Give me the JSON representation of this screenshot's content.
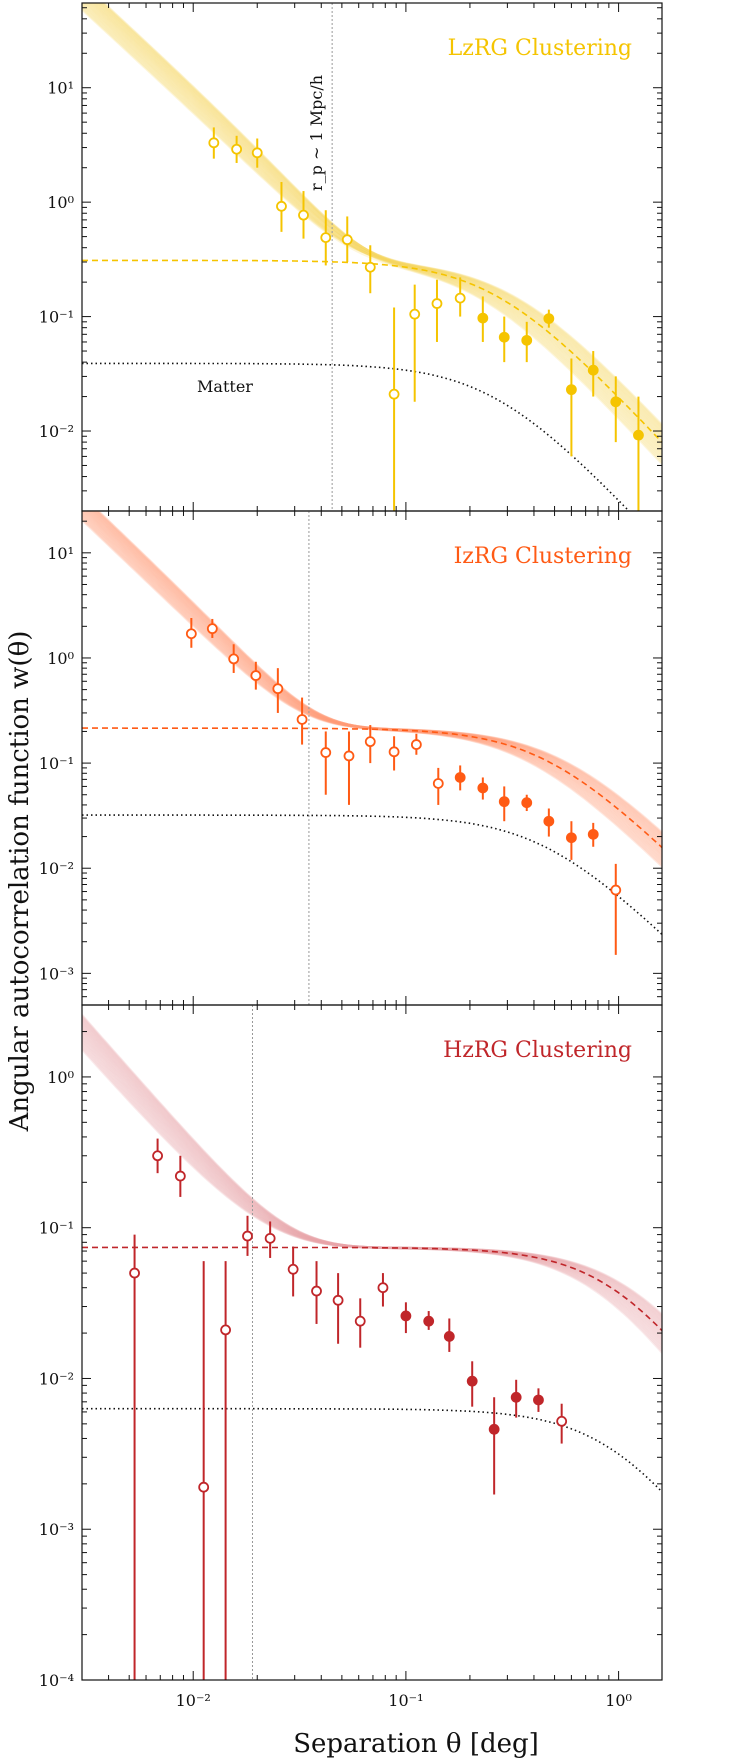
{
  "figure": {
    "ylabel": "Angular autocorrelation function w(θ)",
    "xlabel": "Separation θ [deg]",
    "xlim": [
      0.003,
      1.6
    ],
    "xticks": [
      {
        "v": 0.01,
        "label": "10⁻²"
      },
      {
        "v": 0.1,
        "label": "10⁻¹"
      },
      {
        "v": 1,
        "label": "10⁰"
      }
    ],
    "matter_label": "Matter",
    "scale_label": "r_p ~ 1 Mpc/h"
  },
  "chart_data": [
    {
      "type": "scatter",
      "title": "LzRG Clustering",
      "color": "#f5c400",
      "band_color": "#f7d760",
      "ylim": [
        0.002,
        55
      ],
      "yticks": [
        {
          "v": 0.01,
          "label": "10⁻²"
        },
        {
          "v": 0.1,
          "label": "10⁻¹"
        },
        {
          "v": 1,
          "label": "10⁰"
        },
        {
          "v": 10,
          "label": "10¹"
        }
      ],
      "theta_1mpc": 0.045,
      "model": {
        "amp": 0.31,
        "k": 0.26,
        "hard_amp": 0.54,
        "slope": 1.7,
        "cut": 0.05
      },
      "matter_amp": 0.039,
      "points": [
        {
          "x": 0.0125,
          "y": 3.3,
          "lo": 2.4,
          "hi": 4.5,
          "filled": false
        },
        {
          "x": 0.016,
          "y": 2.9,
          "lo": 2.2,
          "hi": 3.8,
          "filled": false
        },
        {
          "x": 0.02,
          "y": 2.7,
          "lo": 2.0,
          "hi": 3.6,
          "filled": false
        },
        {
          "x": 0.026,
          "y": 0.92,
          "lo": 0.55,
          "hi": 1.5,
          "filled": false
        },
        {
          "x": 0.033,
          "y": 0.77,
          "lo": 0.48,
          "hi": 1.25,
          "filled": false
        },
        {
          "x": 0.042,
          "y": 0.49,
          "lo": 0.28,
          "hi": 0.85,
          "filled": false
        },
        {
          "x": 0.053,
          "y": 0.47,
          "lo": 0.3,
          "hi": 0.75,
          "filled": false
        },
        {
          "x": 0.068,
          "y": 0.27,
          "lo": 0.16,
          "hi": 0.42,
          "filled": false
        },
        {
          "x": 0.088,
          "y": 0.021,
          "lo": 0.001,
          "hi": 0.12,
          "filled": false
        },
        {
          "x": 0.11,
          "y": 0.105,
          "lo": 0.018,
          "hi": 0.19,
          "filled": false
        },
        {
          "x": 0.14,
          "y": 0.13,
          "lo": 0.06,
          "hi": 0.21,
          "filled": false
        },
        {
          "x": 0.18,
          "y": 0.145,
          "lo": 0.1,
          "hi": 0.22,
          "filled": false
        },
        {
          "x": 0.23,
          "y": 0.097,
          "lo": 0.06,
          "hi": 0.15,
          "filled": true
        },
        {
          "x": 0.29,
          "y": 0.066,
          "lo": 0.04,
          "hi": 0.1,
          "filled": true
        },
        {
          "x": 0.37,
          "y": 0.062,
          "lo": 0.04,
          "hi": 0.09,
          "filled": true
        },
        {
          "x": 0.47,
          "y": 0.096,
          "lo": 0.08,
          "hi": 0.115,
          "filled": true
        },
        {
          "x": 0.6,
          "y": 0.023,
          "lo": 0.006,
          "hi": 0.043,
          "filled": true
        },
        {
          "x": 0.76,
          "y": 0.034,
          "lo": 0.02,
          "hi": 0.05,
          "filled": true
        },
        {
          "x": 0.97,
          "y": 0.018,
          "lo": 0.008,
          "hi": 0.03,
          "filled": true
        },
        {
          "x": 1.24,
          "y": 0.0092,
          "lo": 0.002,
          "hi": 0.02,
          "filled": true
        }
      ]
    },
    {
      "type": "scatter",
      "title": "IzRG Clustering",
      "color": "#ff5a14",
      "band_color": "#ff9a76",
      "ylim": [
        0.0005,
        25
      ],
      "yticks": [
        {
          "v": 0.001,
          "label": "10⁻³"
        },
        {
          "v": 0.01,
          "label": "10⁻²"
        },
        {
          "v": 0.1,
          "label": "10⁻¹"
        },
        {
          "v": 1,
          "label": "10⁰"
        },
        {
          "v": 10,
          "label": "10¹"
        }
      ],
      "theta_1mpc": 0.035,
      "model": {
        "amp": 0.215,
        "k": 0.45,
        "hard_amp": 0.26,
        "slope": 1.9,
        "cut": 0.035
      },
      "matter_amp": 0.032,
      "points": [
        {
          "x": 0.0098,
          "y": 1.7,
          "lo": 1.25,
          "hi": 2.4,
          "filled": false
        },
        {
          "x": 0.0123,
          "y": 1.9,
          "lo": 1.55,
          "hi": 2.35,
          "filled": false
        },
        {
          "x": 0.0155,
          "y": 0.98,
          "lo": 0.72,
          "hi": 1.35,
          "filled": false
        },
        {
          "x": 0.0197,
          "y": 0.68,
          "lo": 0.5,
          "hi": 0.92,
          "filled": false
        },
        {
          "x": 0.025,
          "y": 0.51,
          "lo": 0.3,
          "hi": 0.8,
          "filled": false
        },
        {
          "x": 0.0325,
          "y": 0.26,
          "lo": 0.15,
          "hi": 0.42,
          "filled": false
        },
        {
          "x": 0.042,
          "y": 0.126,
          "lo": 0.05,
          "hi": 0.2,
          "filled": false
        },
        {
          "x": 0.054,
          "y": 0.117,
          "lo": 0.04,
          "hi": 0.2,
          "filled": false
        },
        {
          "x": 0.068,
          "y": 0.16,
          "lo": 0.1,
          "hi": 0.23,
          "filled": false
        },
        {
          "x": 0.088,
          "y": 0.128,
          "lo": 0.085,
          "hi": 0.18,
          "filled": false
        },
        {
          "x": 0.112,
          "y": 0.15,
          "lo": 0.12,
          "hi": 0.19,
          "filled": false
        },
        {
          "x": 0.142,
          "y": 0.064,
          "lo": 0.04,
          "hi": 0.09,
          "filled": false
        },
        {
          "x": 0.18,
          "y": 0.073,
          "lo": 0.055,
          "hi": 0.095,
          "filled": true
        },
        {
          "x": 0.23,
          "y": 0.058,
          "lo": 0.045,
          "hi": 0.073,
          "filled": true
        },
        {
          "x": 0.29,
          "y": 0.043,
          "lo": 0.028,
          "hi": 0.06,
          "filled": true
        },
        {
          "x": 0.37,
          "y": 0.042,
          "lo": 0.035,
          "hi": 0.05,
          "filled": true
        },
        {
          "x": 0.47,
          "y": 0.028,
          "lo": 0.02,
          "hi": 0.037,
          "filled": true
        },
        {
          "x": 0.6,
          "y": 0.0195,
          "lo": 0.012,
          "hi": 0.028,
          "filled": true
        },
        {
          "x": 0.76,
          "y": 0.021,
          "lo": 0.016,
          "hi": 0.027,
          "filled": true
        },
        {
          "x": 0.97,
          "y": 0.0062,
          "lo": 0.0015,
          "hi": 0.011,
          "filled": false
        }
      ]
    },
    {
      "type": "scatter",
      "title": "HzRG Clustering",
      "color": "#c0262a",
      "band_color": "#e8a6aa",
      "ylim": [
        0.0001,
        3
      ],
      "yticks": [
        {
          "v": 0.0001,
          "label": "10⁻⁴"
        },
        {
          "v": 0.001,
          "label": "10⁻³"
        },
        {
          "v": 0.01,
          "label": "10⁻²"
        },
        {
          "v": 0.1,
          "label": "10⁻¹"
        },
        {
          "v": 1,
          "label": "10⁰"
        }
      ],
      "theta_1mpc": 0.019,
      "model": {
        "amp": 0.074,
        "k": 1.0,
        "hard_amp": 0.05,
        "slope": 1.6,
        "cut": 0.03
      },
      "matter_amp": 0.0063,
      "points": [
        {
          "x": 0.0053,
          "y": 0.05,
          "lo": 0.0001,
          "hi": 0.09,
          "filled": false
        },
        {
          "x": 0.0068,
          "y": 0.3,
          "lo": 0.23,
          "hi": 0.39,
          "filled": false
        },
        {
          "x": 0.0087,
          "y": 0.22,
          "lo": 0.16,
          "hi": 0.3,
          "filled": false
        },
        {
          "x": 0.0112,
          "y": 0.0019,
          "lo": 0.0001,
          "hi": 0.06,
          "filled": false
        },
        {
          "x": 0.0142,
          "y": 0.021,
          "lo": 0.0001,
          "hi": 0.06,
          "filled": false
        },
        {
          "x": 0.018,
          "y": 0.088,
          "lo": 0.065,
          "hi": 0.12,
          "filled": false
        },
        {
          "x": 0.023,
          "y": 0.085,
          "lo": 0.063,
          "hi": 0.11,
          "filled": false
        },
        {
          "x": 0.0295,
          "y": 0.053,
          "lo": 0.035,
          "hi": 0.075,
          "filled": false
        },
        {
          "x": 0.038,
          "y": 0.038,
          "lo": 0.023,
          "hi": 0.06,
          "filled": false
        },
        {
          "x": 0.048,
          "y": 0.033,
          "lo": 0.017,
          "hi": 0.05,
          "filled": false
        },
        {
          "x": 0.061,
          "y": 0.024,
          "lo": 0.016,
          "hi": 0.034,
          "filled": false
        },
        {
          "x": 0.078,
          "y": 0.04,
          "lo": 0.03,
          "hi": 0.05,
          "filled": false
        },
        {
          "x": 0.1,
          "y": 0.026,
          "lo": 0.02,
          "hi": 0.032,
          "filled": true
        },
        {
          "x": 0.128,
          "y": 0.024,
          "lo": 0.021,
          "hi": 0.028,
          "filled": true
        },
        {
          "x": 0.16,
          "y": 0.019,
          "lo": 0.015,
          "hi": 0.025,
          "filled": true
        },
        {
          "x": 0.205,
          "y": 0.0096,
          "lo": 0.0065,
          "hi": 0.013,
          "filled": true
        },
        {
          "x": 0.26,
          "y": 0.0046,
          "lo": 0.0017,
          "hi": 0.0075,
          "filled": true
        },
        {
          "x": 0.33,
          "y": 0.0075,
          "lo": 0.0055,
          "hi": 0.0098,
          "filled": true
        },
        {
          "x": 0.42,
          "y": 0.0072,
          "lo": 0.006,
          "hi": 0.0086,
          "filled": true
        },
        {
          "x": 0.54,
          "y": 0.0052,
          "lo": 0.0037,
          "hi": 0.0068,
          "filled": false
        }
      ]
    }
  ]
}
